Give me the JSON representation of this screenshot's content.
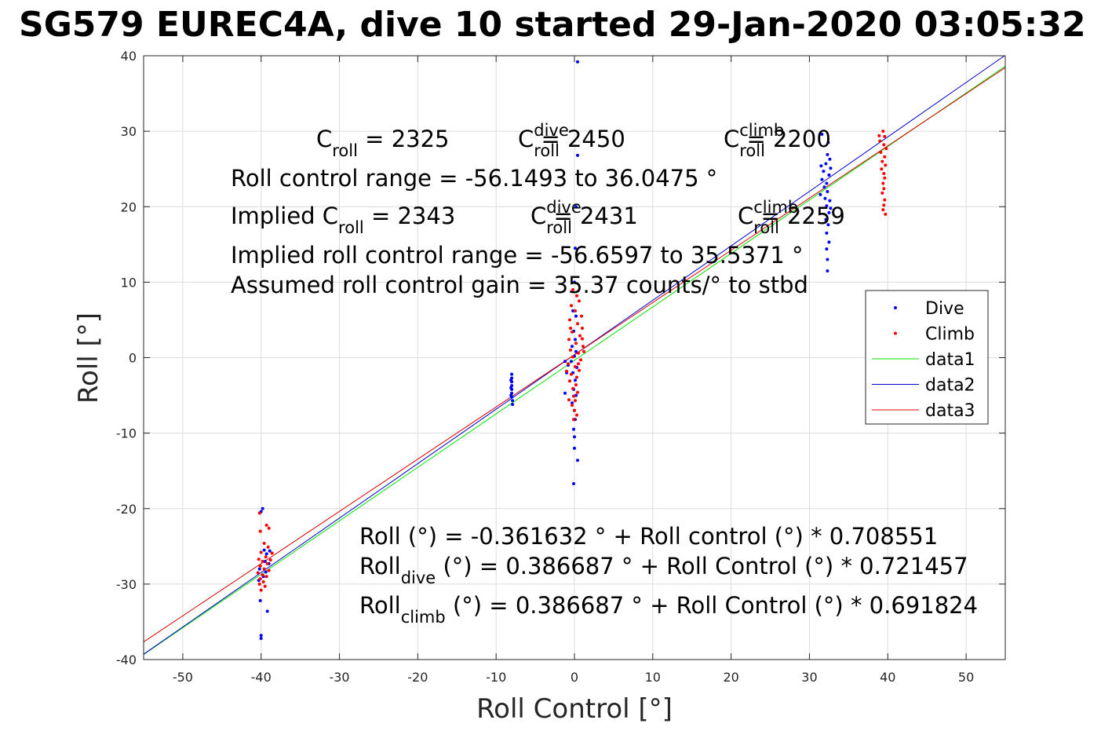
{
  "chart_data": {
    "type": "scatter",
    "title": "SG579 EUREC4A, dive 10 started 29-Jan-2020 03:05:32",
    "xlabel": "Roll Control [°]",
    "ylabel": "Roll [°]",
    "xlim": [
      -55,
      55
    ],
    "ylim": [
      -40,
      40
    ],
    "xticks": [
      -50,
      -40,
      -30,
      -20,
      -10,
      0,
      10,
      20,
      30,
      40,
      50
    ],
    "yticks": [
      -40,
      -30,
      -20,
      -10,
      0,
      10,
      20,
      30,
      40
    ],
    "xtick_labels": [
      "-50",
      "-40",
      "-30",
      "-20",
      "-10",
      "0",
      "10",
      "20",
      "30",
      "40",
      "50"
    ],
    "ytick_labels": [
      "-40",
      "-30",
      "-20",
      "-10",
      "0",
      "10",
      "20",
      "30",
      "40"
    ],
    "grid": true,
    "legend_position": "right",
    "colors": {
      "dive": "#0000ff",
      "climb": "#ff0000",
      "data1": "#00e000",
      "data2": "#0000cc",
      "data3": "#e00000",
      "axis": "#262626",
      "grid": "#dcdcdc"
    },
    "legend": [
      {
        "label": "Dive",
        "kind": "marker",
        "color": "#0000ff"
      },
      {
        "label": "Climb",
        "kind": "marker",
        "color": "#ff0000"
      },
      {
        "label": "data1",
        "kind": "line",
        "color": "#00e000"
      },
      {
        "label": "data2",
        "kind": "line",
        "color": "#0000cc"
      },
      {
        "label": "data3",
        "kind": "line",
        "color": "#e00000"
      }
    ],
    "lines": [
      {
        "name": "data1",
        "color": "#00e000",
        "intercept": -0.361632,
        "slope": 0.708551
      },
      {
        "name": "data2",
        "color": "#0000cc",
        "intercept": 0.386687,
        "slope": 0.721457
      },
      {
        "name": "data3",
        "color": "#e00000",
        "intercept": 0.386687,
        "slope": 0.691824
      }
    ],
    "series": [
      {
        "name": "Dive",
        "color": "#0000ff",
        "points": [
          [
            -40,
            -37.2
          ],
          [
            -40,
            -36.8
          ],
          [
            -40.1,
            -32.2
          ],
          [
            -39.2,
            -33.6
          ],
          [
            -39.8,
            -20.0
          ],
          [
            -40.0,
            -20.4
          ],
          [
            -39.6,
            -25.5
          ],
          [
            -39.3,
            -26.0
          ],
          [
            -38.9,
            -25.6
          ],
          [
            -39.5,
            -27.0
          ],
          [
            -40.2,
            -28.0
          ],
          [
            -39.0,
            -27.3
          ],
          [
            -39.7,
            -29.0
          ],
          [
            -40.3,
            -29.5
          ],
          [
            -39.4,
            -28.4
          ],
          [
            -8,
            -2.2
          ],
          [
            -8,
            -2.7
          ],
          [
            -8,
            -3.2
          ],
          [
            -8,
            -3.7
          ],
          [
            -8,
            -4.2
          ],
          [
            -8,
            -4.7
          ],
          [
            -8,
            -5.2
          ],
          [
            -7.9,
            -5.7
          ],
          [
            -7.9,
            -6.2
          ],
          [
            -8.1,
            -3.0
          ],
          [
            -8.1,
            -4.0
          ],
          [
            -8.1,
            -5.0
          ],
          [
            0.4,
            39.2
          ],
          [
            0.4,
            26.8
          ],
          [
            0.2,
            20.0
          ],
          [
            0.1,
            14.5
          ],
          [
            0.0,
            10.0
          ],
          [
            -0.2,
            6.2
          ],
          [
            0.2,
            5.5
          ],
          [
            -0.1,
            3.5
          ],
          [
            0.1,
            2.4
          ],
          [
            -0.3,
            1.5
          ],
          [
            0.2,
            0.8
          ],
          [
            0.0,
            0.2
          ],
          [
            -0.4,
            -0.5
          ],
          [
            0.3,
            -1.3
          ],
          [
            -0.2,
            -2.0
          ],
          [
            0.1,
            -3.0
          ],
          [
            -0.1,
            -4.2
          ],
          [
            0.2,
            -5.0
          ],
          [
            -0.3,
            -6.0
          ],
          [
            0.0,
            -7.0
          ],
          [
            0.1,
            -8.2
          ],
          [
            -0.1,
            -9.5
          ],
          [
            0.0,
            -10.5
          ],
          [
            0.0,
            -12.0
          ],
          [
            0.4,
            -13.6
          ],
          [
            -0.1,
            -16.7
          ],
          [
            -1.2,
            -4.7
          ],
          [
            -1.0,
            -2.0
          ],
          [
            -0.8,
            -1.0
          ],
          [
            -1.2,
            -0.5
          ],
          [
            31.6,
            29.6
          ],
          [
            32.4,
            28.5
          ],
          [
            32.3,
            26.9
          ],
          [
            32.6,
            26.3
          ],
          [
            32.1,
            25.7
          ],
          [
            31.5,
            25.4
          ],
          [
            32.7,
            25.1
          ],
          [
            31.8,
            24.7
          ],
          [
            32.5,
            24.2
          ],
          [
            31.6,
            23.6
          ],
          [
            32.2,
            23.1
          ],
          [
            31.9,
            22.6
          ],
          [
            32.3,
            22.0
          ],
          [
            31.4,
            21.6
          ],
          [
            32.6,
            20.8
          ],
          [
            32.2,
            20.1
          ],
          [
            32.5,
            19.2
          ],
          [
            32.1,
            18.3
          ],
          [
            32.4,
            17.6
          ],
          [
            32.2,
            16.5
          ],
          [
            32.5,
            15.3
          ],
          [
            32.2,
            14.4
          ],
          [
            32.3,
            13.0
          ],
          [
            32.3,
            11.5
          ],
          [
            32.0,
            21.1
          ],
          [
            32.7,
            19.8
          ]
        ]
      },
      {
        "name": "Climb",
        "color": "#ff0000",
        "points": [
          [
            -40.2,
            -20.6
          ],
          [
            -39.3,
            -22.2
          ],
          [
            -39.0,
            -22.6
          ],
          [
            -40.1,
            -23.0
          ],
          [
            -39.6,
            -24.6
          ],
          [
            -39.1,
            -25.1
          ],
          [
            -40.0,
            -25.8
          ],
          [
            -39.4,
            -26.4
          ],
          [
            -40.3,
            -26.7
          ],
          [
            -39.8,
            -27.0
          ],
          [
            -39.2,
            -27.3
          ],
          [
            -40.1,
            -27.6
          ],
          [
            -39.6,
            -28.0
          ],
          [
            -39.0,
            -28.2
          ],
          [
            -40.4,
            -28.5
          ],
          [
            -39.8,
            -28.8
          ],
          [
            -39.3,
            -29.0
          ],
          [
            -40.1,
            -29.3
          ],
          [
            -39.7,
            -29.7
          ],
          [
            -40.2,
            -30.0
          ],
          [
            -39.5,
            -30.3
          ],
          [
            -40.0,
            -30.8
          ],
          [
            -38.8,
            -26.8
          ],
          [
            -38.6,
            -25.9
          ],
          [
            -0.2,
            9.0
          ],
          [
            0.3,
            8.2
          ],
          [
            0.6,
            7.5
          ],
          [
            -0.4,
            6.9
          ],
          [
            0.1,
            6.2
          ],
          [
            0.9,
            5.5
          ],
          [
            -0.6,
            5.0
          ],
          [
            0.4,
            4.5
          ],
          [
            1.0,
            3.9
          ],
          [
            -0.3,
            3.4
          ],
          [
            0.7,
            2.9
          ],
          [
            -0.7,
            2.4
          ],
          [
            0.2,
            1.9
          ],
          [
            1.1,
            1.5
          ],
          [
            -0.5,
            1.0
          ],
          [
            0.5,
            0.6
          ],
          [
            -0.2,
            0.1
          ],
          [
            0.8,
            -0.3
          ],
          [
            -0.8,
            -0.8
          ],
          [
            0.1,
            -1.2
          ],
          [
            0.6,
            -1.7
          ],
          [
            -0.4,
            -2.2
          ],
          [
            0.3,
            -2.6
          ],
          [
            -0.6,
            -3.1
          ],
          [
            0.2,
            -3.6
          ],
          [
            -0.2,
            -4.1
          ],
          [
            0.4,
            -4.6
          ],
          [
            -0.1,
            -5.1
          ],
          [
            0.1,
            -5.7
          ],
          [
            -0.3,
            -6.3
          ],
          [
            0.0,
            -7.0
          ],
          [
            0.3,
            -7.6
          ],
          [
            -0.1,
            -8.2
          ],
          [
            1.2,
            0.8
          ],
          [
            -1.0,
            -1.8
          ],
          [
            0.5,
            -0.8
          ],
          [
            -0.5,
            3.9
          ],
          [
            1.0,
            2.5
          ],
          [
            -0.7,
            -5.6
          ],
          [
            39.4,
            30.0
          ],
          [
            39.6,
            29.3
          ],
          [
            39.0,
            28.7
          ],
          [
            39.5,
            28.2
          ],
          [
            39.8,
            27.7
          ],
          [
            39.1,
            27.2
          ],
          [
            39.6,
            26.6
          ],
          [
            39.3,
            26.0
          ],
          [
            39.7,
            25.5
          ],
          [
            39.2,
            25.0
          ],
          [
            39.5,
            24.4
          ],
          [
            39.6,
            23.8
          ],
          [
            39.4,
            23.1
          ],
          [
            39.5,
            22.4
          ],
          [
            39.3,
            21.8
          ],
          [
            39.6,
            20.9
          ],
          [
            39.5,
            20.2
          ],
          [
            39.4,
            19.6
          ],
          [
            39.7,
            19.0
          ],
          [
            38.9,
            29.4
          ]
        ]
      }
    ],
    "annotations_top": [
      {
        "segments": [
          {
            "t": "C",
            "s": "n"
          },
          {
            "t": "roll",
            "s": "sub"
          },
          {
            "t": " = 2325",
            "s": "n"
          }
        ]
      },
      {
        "segments": [
          {
            "t": "C",
            "s": "n"
          },
          {
            "t": "roll",
            "s": "sub"
          },
          {
            "t": "dive",
            "s": "sup"
          },
          {
            "t": " = 2450",
            "s": "n"
          }
        ]
      },
      {
        "segments": [
          {
            "t": "C",
            "s": "n"
          },
          {
            "t": "roll",
            "s": "sub"
          },
          {
            "t": "climb",
            "s": "sup"
          },
          {
            "t": " = 2200",
            "s": "n"
          }
        ]
      },
      {
        "segments": [
          {
            "t": "Roll control range = -56.1493 to 36.0475 °",
            "s": "n"
          }
        ]
      },
      {
        "segments": [
          {
            "t": "Implied C",
            "s": "n"
          },
          {
            "t": "roll",
            "s": "sub"
          },
          {
            "t": " = 2343",
            "s": "n"
          }
        ]
      },
      {
        "segments": [
          {
            "t": "C",
            "s": "n"
          },
          {
            "t": "roll",
            "s": "sub"
          },
          {
            "t": "dive",
            "s": "sup"
          },
          {
            "t": " = 2431",
            "s": "n"
          }
        ]
      },
      {
        "segments": [
          {
            "t": "C",
            "s": "n"
          },
          {
            "t": "roll",
            "s": "sub"
          },
          {
            "t": "climb",
            "s": "sup"
          },
          {
            "t": " = 2259",
            "s": "n"
          }
        ]
      },
      {
        "segments": [
          {
            "t": "Implied roll control range = -56.6597 to 35.5371 °",
            "s": "n"
          }
        ]
      },
      {
        "segments": [
          {
            "t": "Assumed roll control gain = 35.37 counts/° to stbd",
            "s": "n"
          }
        ]
      }
    ],
    "annotations_bottom": [
      {
        "segments": [
          {
            "t": "Roll (°) = -0.361632 ° + Roll control (°) * 0.708551",
            "s": "n"
          }
        ]
      },
      {
        "segments": [
          {
            "t": "Roll",
            "s": "n"
          },
          {
            "t": "dive",
            "s": "sub"
          },
          {
            "t": " (°) = 0.386687 ° + Roll Control (°) * 0.721457",
            "s": "n"
          }
        ]
      },
      {
        "segments": [
          {
            "t": "Roll",
            "s": "n"
          },
          {
            "t": "climb",
            "s": "sub"
          },
          {
            "t": " (°) = 0.386687 ° + Roll Control (°) * 0.691824",
            "s": "n"
          }
        ]
      }
    ]
  }
}
